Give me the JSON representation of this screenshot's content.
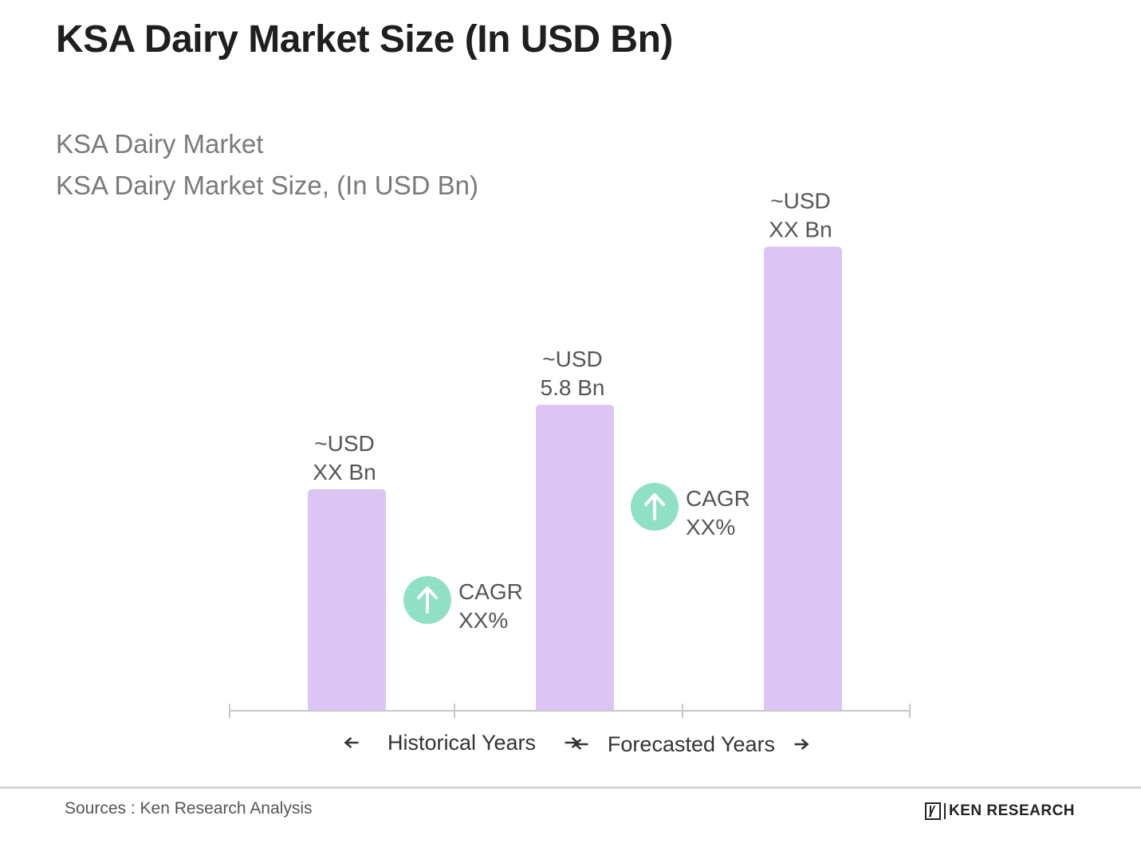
{
  "header": {
    "title": "KSA Dairy Market Size (In USD Bn)",
    "subtitle_line1": "KSA Dairy Market",
    "subtitle_line2": "KSA Dairy Market Size, (In USD Bn)"
  },
  "chart_data": {
    "type": "bar",
    "categories": [
      "",
      "",
      ""
    ],
    "values": [
      4.2,
      5.8,
      8.8
    ],
    "data_labels": [
      [
        "~USD",
        "XX Bn"
      ],
      [
        "~USD",
        "5.8 Bn"
      ],
      [
        "~USD",
        "XX Bn"
      ]
    ],
    "ylim": [
      0,
      10
    ],
    "bar_color": "#dcc4f5",
    "axis_color": "#c8c8c8",
    "grid": false,
    "cagr_badges": [
      {
        "text": [
          "CAGR",
          "XX%"
        ],
        "icon": "arrow-up-icon",
        "color": "#8fe0c4",
        "between": [
          0,
          1
        ]
      },
      {
        "text": [
          "CAGR",
          "XX%"
        ],
        "icon": "arrow-up-icon",
        "color": "#8fe0c4",
        "between": [
          1,
          2
        ]
      }
    ],
    "period_labels": [
      "Historical Years",
      "Forecasted Years"
    ]
  },
  "footer": {
    "sources": "Sources : Ken Research Analysis",
    "logo_text": "KEN RESEARCH"
  }
}
